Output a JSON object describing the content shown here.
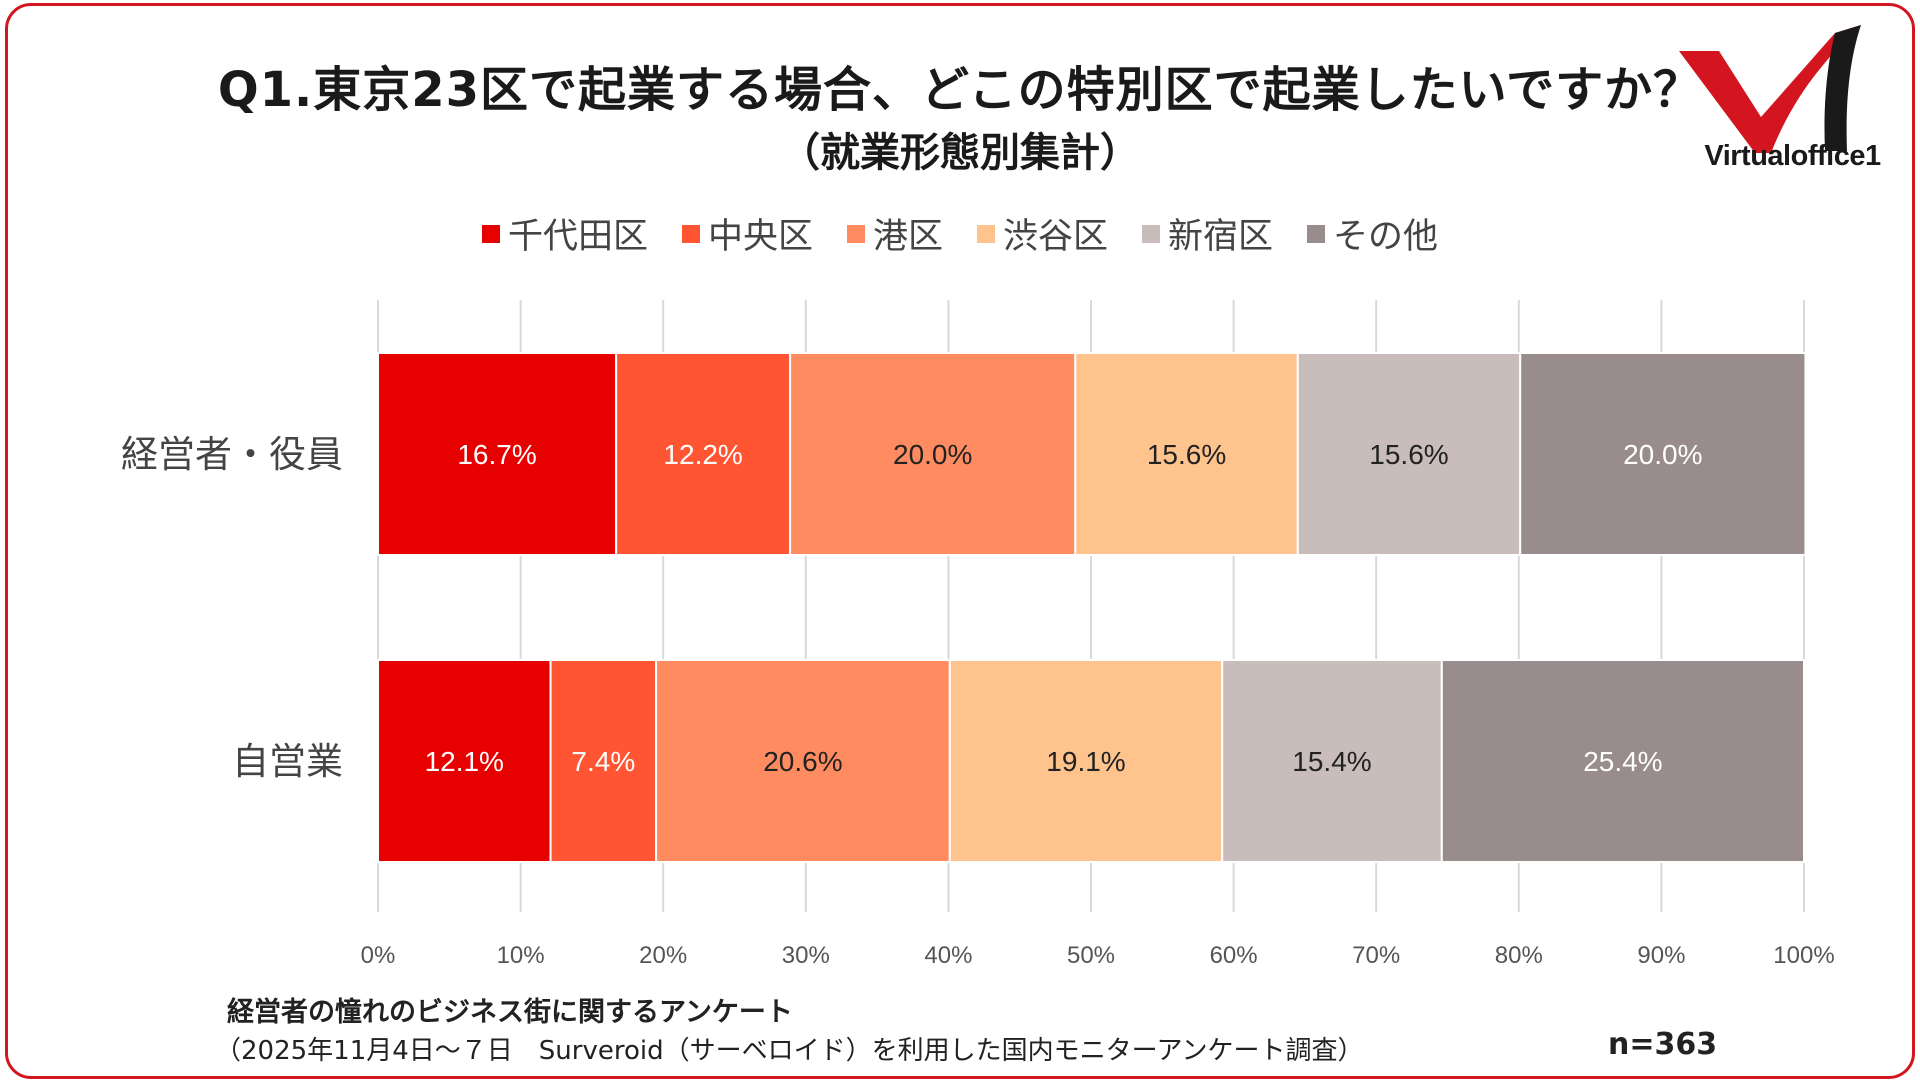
{
  "title": "Q1.東京23区で起業する場合、どこの特別区で起業したいですか？",
  "subtitle": "（就業形態別集計）",
  "logo": {
    "text": "Virtualoffice1",
    "icon": "check-logo-icon"
  },
  "colors": {
    "border": "#d2151e",
    "series": [
      "#e60000",
      "#ff5533",
      "#ff8c60",
      "#ffc38e",
      "#c9bdbb",
      "#988c8c"
    ],
    "label_colors": [
      "#ffffff",
      "#ffffff",
      "#222222",
      "#222222",
      "#222222",
      "#ffffff"
    ]
  },
  "chart_data": {
    "type": "bar",
    "orientation": "horizontal",
    "stacked": true,
    "categories": [
      "経営者・役員",
      "自営業"
    ],
    "series": [
      {
        "name": "千代田区",
        "values": [
          16.7,
          12.1
        ]
      },
      {
        "name": "中央区",
        "values": [
          12.2,
          7.4
        ]
      },
      {
        "name": "港区",
        "values": [
          20.0,
          20.6
        ]
      },
      {
        "name": "渋谷区",
        "values": [
          15.6,
          19.1
        ]
      },
      {
        "name": "新宿区",
        "values": [
          15.6,
          15.4
        ]
      },
      {
        "name": "その他",
        "values": [
          20.0,
          25.4
        ]
      }
    ],
    "data_labels": [
      [
        "16.7%",
        "12.1%"
      ],
      [
        "12.2%",
        "7.4%"
      ],
      [
        "20.0%",
        "20.6%"
      ],
      [
        "15.6%",
        "19.1%"
      ],
      [
        "15.6%",
        "15.4%"
      ],
      [
        "20.0%",
        "25.4%"
      ]
    ],
    "xlim": [
      0,
      100
    ],
    "x_ticks": [
      "0%",
      "10%",
      "20%",
      "30%",
      "40%",
      "50%",
      "60%",
      "70%",
      "80%",
      "90%",
      "100%"
    ],
    "grid": true,
    "legend_position": "top"
  },
  "footer": {
    "survey_name": "経営者の憧れのビジネス街に関するアンケート",
    "survey_detail": "（2025年11月4日～７日　Surveroid（サーベロイド）を利用した国内モニターアンケート調査）",
    "sample_size": "n=363"
  }
}
